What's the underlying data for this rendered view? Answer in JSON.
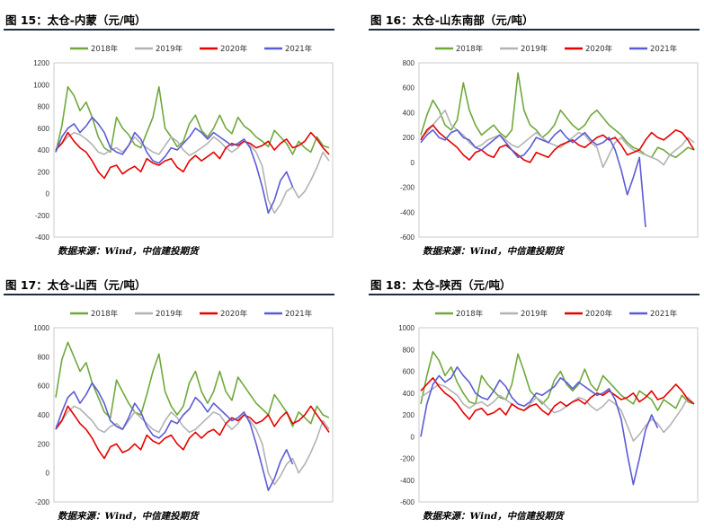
{
  "source_text": "数据来源：Wind，中信建投期货",
  "colors": {
    "2018年": "#70a83c",
    "2019年": "#b3b3b3",
    "2020年": "#e60000",
    "2021年": "#5b5bd6"
  },
  "chart_data": [
    {
      "type": "line",
      "title": "图 15：太仓-内蒙（元/吨）",
      "ylim": [
        -400,
        1200
      ],
      "yticks": [
        -400,
        -200,
        0,
        200,
        400,
        600,
        800,
        1000,
        1200
      ],
      "legend_position": "top",
      "series": [
        {
          "name": "2018年",
          "color": "#70a83c",
          "values": [
            380,
            620,
            980,
            900,
            760,
            840,
            700,
            520,
            420,
            380,
            700,
            600,
            540,
            450,
            420,
            560,
            700,
            980,
            600,
            520,
            430,
            480,
            640,
            720,
            580,
            520,
            600,
            720,
            600,
            550,
            700,
            620,
            580,
            520,
            480,
            430,
            580,
            520,
            460,
            360,
            480,
            420,
            380,
            520,
            440,
            420
          ]
        },
        {
          "name": "2019年",
          "color": "#b3b3b3",
          "values": [
            420,
            460,
            520,
            560,
            540,
            500,
            450,
            380,
            360,
            400,
            420,
            380,
            440,
            520,
            460,
            420,
            380,
            360,
            440,
            520,
            480,
            400,
            350,
            380,
            420,
            460,
            520,
            480,
            420,
            380,
            420,
            480,
            440,
            380,
            250,
            -60,
            -180,
            -100,
            20,
            60,
            -40,
            20,
            120,
            240,
            380,
            300
          ]
        },
        {
          "name": "2020年",
          "color": "#e60000",
          "values": [
            400,
            460,
            560,
            480,
            420,
            380,
            300,
            200,
            140,
            240,
            260,
            180,
            220,
            250,
            200,
            320,
            280,
            260,
            300,
            320,
            240,
            200,
            300,
            350,
            300,
            340,
            380,
            320,
            420,
            460,
            440,
            480,
            460,
            420,
            440,
            480,
            400,
            460,
            500,
            420,
            440,
            480,
            560,
            500,
            420,
            360
          ]
        },
        {
          "name": "2021年",
          "color": "#5b5bd6",
          "values": [
            380,
            520,
            600,
            640,
            560,
            620,
            700,
            640,
            560,
            420,
            380,
            360,
            440,
            560,
            500,
            380,
            300,
            280,
            340,
            420,
            400,
            460,
            520,
            600,
            560,
            500,
            560,
            520,
            480,
            440,
            460,
            500,
            420,
            260,
            60,
            -180,
            -60,
            120,
            200,
            60,
            null,
            null,
            null,
            null,
            null,
            null
          ]
        }
      ]
    },
    {
      "type": "line",
      "title": "图 16：太仓-山东南部（元/吨）",
      "ylim": [
        -600,
        800
      ],
      "yticks": [
        -600,
        -400,
        -200,
        0,
        200,
        400,
        600,
        800
      ],
      "legend_position": "top",
      "series": [
        {
          "name": "2018年",
          "color": "#70a83c",
          "values": [
            220,
            380,
            500,
            420,
            300,
            260,
            340,
            640,
            420,
            300,
            220,
            260,
            300,
            240,
            200,
            260,
            720,
            420,
            300,
            260,
            200,
            240,
            300,
            420,
            360,
            300,
            260,
            300,
            380,
            420,
            360,
            300,
            260,
            220,
            160,
            120,
            100,
            60,
            40,
            120,
            100,
            60,
            40,
            80,
            120,
            100
          ]
        },
        {
          "name": "2019年",
          "color": "#b3b3b3",
          "values": [
            200,
            240,
            300,
            360,
            420,
            300,
            260,
            220,
            160,
            120,
            140,
            180,
            200,
            220,
            180,
            140,
            120,
            160,
            200,
            240,
            200,
            160,
            140,
            120,
            160,
            200,
            240,
            220,
            160,
            120,
            -40,
            60,
            160,
            200,
            140,
            100,
            80,
            60,
            40,
            20,
            -20,
            60,
            100,
            140,
            200,
            160
          ]
        },
        {
          "name": "2020年",
          "color": "#e60000",
          "values": [
            180,
            260,
            300,
            240,
            200,
            160,
            120,
            60,
            20,
            80,
            100,
            60,
            40,
            120,
            140,
            100,
            60,
            20,
            0,
            80,
            60,
            40,
            100,
            140,
            160,
            180,
            140,
            120,
            160,
            200,
            220,
            180,
            200,
            140,
            60,
            80,
            100,
            180,
            240,
            200,
            180,
            220,
            260,
            240,
            180,
            100
          ]
        },
        {
          "name": "2021年",
          "color": "#5b5bd6",
          "values": [
            160,
            220,
            260,
            200,
            180,
            240,
            260,
            200,
            180,
            120,
            100,
            140,
            180,
            220,
            160,
            100,
            40,
            60,
            120,
            200,
            180,
            160,
            220,
            260,
            200,
            160,
            200,
            240,
            180,
            140,
            160,
            200,
            100,
            -60,
            -260,
            -120,
            40,
            -520,
            null,
            null,
            null,
            null,
            null,
            null,
            null,
            null
          ]
        }
      ]
    },
    {
      "type": "line",
      "title": "图 17：太仓-山西（元/吨）",
      "ylim": [
        -200,
        1000
      ],
      "yticks": [
        -200,
        0,
        200,
        400,
        600,
        800,
        1000
      ],
      "legend_position": "top",
      "series": [
        {
          "name": "2018年",
          "color": "#70a83c",
          "values": [
            520,
            780,
            900,
            800,
            700,
            760,
            620,
            520,
            420,
            380,
            640,
            560,
            480,
            420,
            400,
            540,
            700,
            820,
            560,
            460,
            400,
            460,
            620,
            700,
            560,
            480,
            560,
            700,
            560,
            500,
            660,
            600,
            540,
            480,
            440,
            400,
            540,
            480,
            420,
            320,
            420,
            380,
            340,
            460,
            400,
            380
          ]
        },
        {
          "name": "2019年",
          "color": "#b3b3b3",
          "values": [
            320,
            360,
            420,
            460,
            440,
            400,
            360,
            300,
            280,
            320,
            340,
            300,
            360,
            420,
            380,
            340,
            300,
            280,
            360,
            420,
            380,
            320,
            280,
            300,
            340,
            380,
            420,
            400,
            340,
            300,
            340,
            400,
            360,
            300,
            200,
            0,
            -80,
            -20,
            60,
            100,
            0,
            60,
            140,
            240,
            360,
            300
          ]
        },
        {
          "name": "2020年",
          "color": "#e60000",
          "values": [
            300,
            360,
            460,
            400,
            340,
            300,
            240,
            160,
            100,
            180,
            200,
            140,
            160,
            200,
            160,
            260,
            220,
            200,
            240,
            260,
            200,
            160,
            240,
            280,
            240,
            280,
            300,
            260,
            340,
            380,
            360,
            400,
            380,
            340,
            360,
            400,
            320,
            380,
            420,
            340,
            360,
            400,
            460,
            400,
            340,
            280
          ]
        },
        {
          "name": "2021年",
          "color": "#5b5bd6",
          "values": [
            300,
            420,
            520,
            560,
            480,
            540,
            620,
            560,
            480,
            360,
            320,
            300,
            380,
            480,
            420,
            320,
            260,
            240,
            280,
            360,
            340,
            400,
            440,
            520,
            480,
            420,
            480,
            440,
            400,
            360,
            380,
            420,
            340,
            200,
            40,
            -120,
            -40,
            80,
            160,
            60,
            null,
            null,
            null,
            null,
            null,
            null
          ]
        }
      ]
    },
    {
      "type": "line",
      "title": "图 18：太仓-陕西（元/吨）",
      "ylim": [
        -600,
        1000
      ],
      "yticks": [
        -600,
        -400,
        -200,
        0,
        200,
        400,
        600,
        800,
        1000
      ],
      "legend_position": "top",
      "series": [
        {
          "name": "2018年",
          "color": "#70a83c",
          "values": [
            300,
            560,
            780,
            700,
            560,
            640,
            500,
            400,
            320,
            300,
            560,
            480,
            420,
            360,
            340,
            480,
            760,
            600,
            420,
            360,
            300,
            360,
            520,
            600,
            480,
            420,
            480,
            620,
            480,
            420,
            560,
            500,
            440,
            380,
            340,
            300,
            420,
            380,
            340,
            240,
            340,
            300,
            260,
            380,
            320,
            300
          ]
        },
        {
          "name": "2019年",
          "color": "#b3b3b3",
          "values": [
            360,
            400,
            440,
            480,
            460,
            420,
            380,
            300,
            260,
            300,
            320,
            280,
            320,
            380,
            340,
            300,
            260,
            240,
            300,
            360,
            320,
            260,
            220,
            240,
            280,
            320,
            360,
            340,
            280,
            240,
            280,
            340,
            300,
            240,
            100,
            -40,
            20,
            100,
            160,
            120,
            40,
            100,
            180,
            260,
            360,
            300
          ]
        },
        {
          "name": "2020年",
          "color": "#e60000",
          "values": [
            420,
            480,
            540,
            460,
            400,
            360,
            300,
            220,
            160,
            240,
            260,
            200,
            220,
            260,
            200,
            300,
            260,
            240,
            280,
            300,
            240,
            200,
            280,
            320,
            280,
            320,
            340,
            300,
            360,
            400,
            380,
            420,
            380,
            340,
            360,
            400,
            320,
            360,
            420,
            340,
            360,
            420,
            480,
            420,
            340,
            300
          ]
        },
        {
          "name": "2021年",
          "color": "#5b5bd6",
          "values": [
            0,
            300,
            480,
            560,
            500,
            540,
            640,
            560,
            500,
            400,
            360,
            340,
            420,
            520,
            460,
            360,
            300,
            280,
            320,
            400,
            380,
            420,
            460,
            540,
            500,
            440,
            500,
            460,
            420,
            380,
            400,
            440,
            340,
            160,
            -160,
            -440,
            -200,
            60,
            200,
            80,
            null,
            null,
            null,
            null,
            null,
            null
          ]
        }
      ]
    }
  ]
}
